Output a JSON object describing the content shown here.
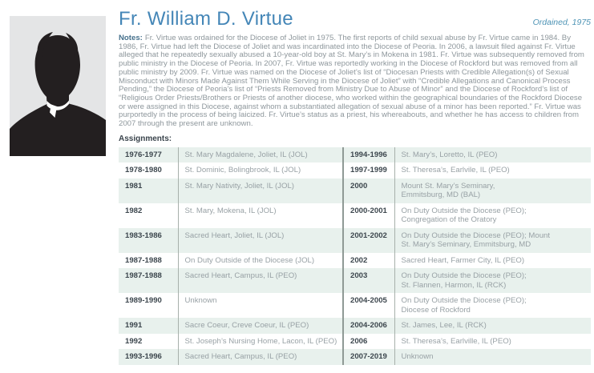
{
  "profile": {
    "title": "Fr. William D. Virtue",
    "ordained": "Ordained, 1975",
    "photo": "priest-silhouette",
    "colors": {
      "title_blue": "#4486b7",
      "ordained_teal": "#4d93b5",
      "notes_label": "#45708c",
      "body_text": "#8e979c",
      "year_text": "#3d474e",
      "place_text": "#98a1a5",
      "row_stripe": "#e8f1ed",
      "divider": "#a7b0ab",
      "photo_bg": "#e4e5e6",
      "silhouette": "#231f20"
    }
  },
  "notes": {
    "label": "Notes:",
    "text": "Fr. Virtue was ordained for the Diocese of Joliet in 1975. The first reports of child sexual abuse by Fr. Virtue came in 1984. By 1986, Fr. Virtue had left the Diocese of Joliet and was incardinated into the Diocese of Peoria. In 2006, a lawsuit filed against Fr. Virtue alleged that he repeatedly sexually abused a 10-year-old boy at St. Mary’s in Mokena in 1981. Fr. Virtue was subsequently removed from public ministry in the Diocese of Peoria. In 2007, Fr. Virtue was reportedly working in the Diocese of Rockford but was removed from all public ministry by 2009. Fr. Virtue was named on the Diocese of Joliet’s list of “Diocesan Priests with Credible Allegation(s) of Sexual Misconduct with Minors Made Against Them While Serving in the Diocese of Joliet” with “Credible Allegations and Canonical Process Pending,” the Diocese of Peoria’s list of “Priests Removed from Ministry Due to Abuse of Minor” and the Diocese of Rockford’s list of “Religious Order Priests/Brothers or Priests of another diocese, who worked within the geographical boundaries of the Rockford Diocese or were assigned in this Diocese, against whom a substantiated allegation of sexual abuse of a minor has been reported.” Fr. Virtue was purportedly in the process of being laicized. Fr. Virtue’s status as a priest, his whereabouts, and whether he has access to children from 2007 through the present are unknown."
  },
  "assignments": {
    "label": "Assignments:",
    "rows": [
      {
        "left": {
          "years": "1976-1977",
          "place": "St. Mary Magdalene, Joliet, IL (JOL)"
        },
        "right": {
          "years": "1994-1996",
          "place": "St. Mary’s, Loretto, IL (PEO)"
        }
      },
      {
        "left": {
          "years": "1978-1980",
          "place": "St. Dominic, Bolingbrook, IL (JOL)"
        },
        "right": {
          "years": "1997-1999",
          "place": "St. Theresa’s, Earlvile, IL (PEO)"
        }
      },
      {
        "left": {
          "years": "1981",
          "place": "St. Mary Nativity, Joliet, IL (JOL)"
        },
        "right": {
          "years": "2000",
          "place": "Mount St. Mary’s Seminary,\nEmmitsburg, MD (BAL)"
        }
      },
      {
        "left": {
          "years": "1982",
          "place": "St. Mary, Mokena, IL (JOL)"
        },
        "right": {
          "years": "2000-2001",
          "place": "On Duty Outside the Diocese (PEO);\nCongregation of the Oratory"
        }
      },
      {
        "left": {
          "years": "1983-1986",
          "place": "Sacred Heart, Joliet, IL (JOL)"
        },
        "right": {
          "years": "2001-2002",
          "place": "On Duty Outside the Diocese (PEO); Mount\nSt. Mary’s Seminary, Emmitsburg, MD"
        }
      },
      {
        "left": {
          "years": "1987-1988",
          "place": "On Duty Outside of the Diocese (JOL)"
        },
        "right": {
          "years": "2002",
          "place": "Sacred Heart, Farmer City, IL (PEO)"
        }
      },
      {
        "left": {
          "years": "1987-1988",
          "place": "Sacred Heart, Campus, IL (PEO)"
        },
        "right": {
          "years": "2003",
          "place": "On Duty Outside the Diocese (PEO);\nSt. Flannen, Harmon, IL (RCK)"
        }
      },
      {
        "left": {
          "years": "1989-1990",
          "place": "Unknown"
        },
        "right": {
          "years": "2004-2005",
          "place": "On Duty Outside the Diocese (PEO);\nDiocese of Rockford"
        }
      },
      {
        "left": {
          "years": "1991",
          "place": "Sacre Coeur, Creve Coeur, IL (PEO)"
        },
        "right": {
          "years": "2004-2006",
          "place": "St. James, Lee, IL (RCK)"
        }
      },
      {
        "left": {
          "years": "1992",
          "place": "St. Joseph’s Nursing Home, Lacon, IL (PEO)"
        },
        "right": {
          "years": "2006",
          "place": "St. Theresa’s, Earlville, IL (PEO)"
        }
      },
      {
        "left": {
          "years": "1993-1996",
          "place": "Sacred Heart, Campus, IL (PEO)"
        },
        "right": {
          "years": "2007-2019",
          "place": "Unknown"
        }
      }
    ]
  }
}
